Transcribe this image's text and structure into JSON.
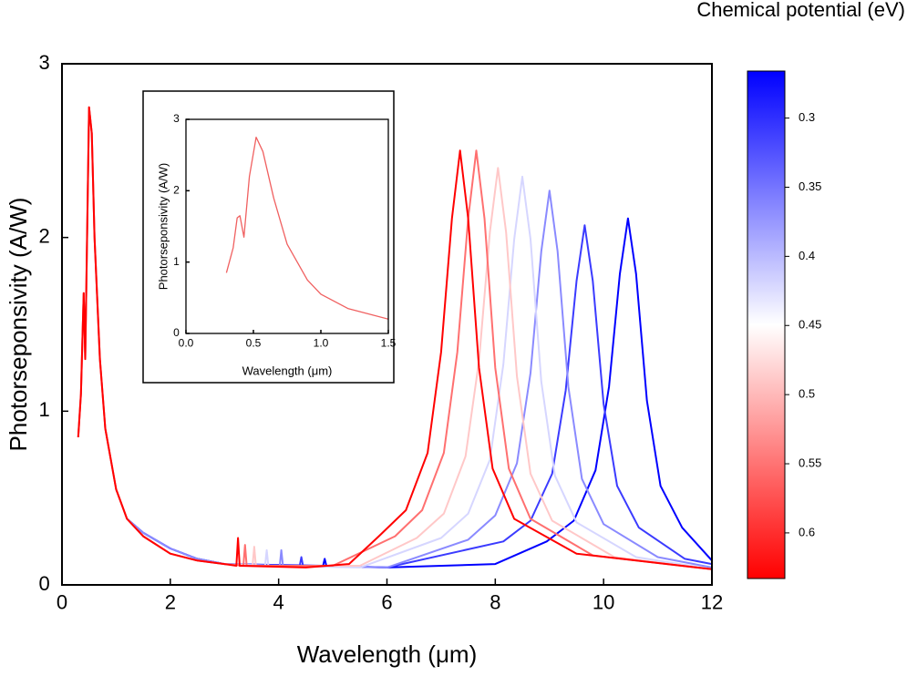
{
  "chart_data": [
    {
      "type": "line",
      "xlabel": "Wavelength (μm)",
      "ylabel": "Photorseponsivity (A/W)",
      "xlim": [
        0,
        12
      ],
      "xticks": [
        0,
        2,
        4,
        6,
        8,
        10,
        12
      ],
      "ylim": [
        0,
        3
      ],
      "yticks": [
        0,
        1,
        2,
        3
      ],
      "series": [
        {
          "color": "#0000ff",
          "x": [
            1.2,
            1.5,
            2.0,
            2.5,
            3.0,
            4.82,
            4.85,
            4.88,
            6.0,
            8.0,
            8.95,
            9.45,
            9.85,
            10.1,
            10.3,
            10.45,
            10.6,
            10.8,
            11.05,
            11.45,
            12.0
          ],
          "values": [
            0.38,
            0.3,
            0.21,
            0.15,
            0.12,
            0.11,
            0.15,
            0.11,
            0.1,
            0.12,
            0.25,
            0.37,
            0.66,
            1.14,
            1.79,
            2.11,
            1.79,
            1.06,
            0.57,
            0.33,
            0.14
          ]
        },
        {
          "color": "#3b3bff",
          "x": [
            1.2,
            1.5,
            2.0,
            2.5,
            3.0,
            4.39,
            4.42,
            4.45,
            6.0,
            8.15,
            8.65,
            9.05,
            9.3,
            9.5,
            9.65,
            9.8,
            10.0,
            10.25,
            10.65,
            11.5,
            12.0
          ],
          "values": [
            0.38,
            0.3,
            0.21,
            0.15,
            0.12,
            0.11,
            0.16,
            0.11,
            0.1,
            0.25,
            0.37,
            0.64,
            1.12,
            1.75,
            2.07,
            1.75,
            1.04,
            0.57,
            0.33,
            0.15,
            0.12
          ]
        },
        {
          "color": "#8a8aff",
          "x": [
            1.2,
            1.5,
            2.0,
            2.5,
            3.0,
            4.02,
            4.05,
            4.08,
            6.0,
            7.5,
            8.0,
            8.4,
            8.65,
            8.85,
            9.0,
            9.15,
            9.35,
            9.6,
            10.0,
            11.0,
            12.0
          ],
          "values": [
            0.38,
            0.3,
            0.21,
            0.15,
            0.12,
            0.11,
            0.2,
            0.11,
            0.1,
            0.26,
            0.4,
            0.7,
            1.22,
            1.92,
            2.27,
            1.92,
            1.14,
            0.61,
            0.35,
            0.16,
            0.1
          ]
        },
        {
          "color": "#d6d6ff",
          "x": [
            0.3,
            0.35,
            0.4,
            0.43,
            0.5,
            0.55,
            0.6,
            0.7,
            0.8,
            1.0,
            1.2,
            1.5,
            2.0,
            2.5,
            3.0,
            3.75,
            3.78,
            3.81,
            5.5,
            7.0,
            7.5,
            7.9,
            8.15,
            8.35,
            8.5,
            8.65,
            8.85,
            9.1,
            9.5,
            10.6,
            12.0
          ],
          "values": [
            0.85,
            1.1,
            1.68,
            1.3,
            2.75,
            2.6,
            2.0,
            1.3,
            0.9,
            0.55,
            0.38,
            0.28,
            0.18,
            0.14,
            0.12,
            0.11,
            0.2,
            0.11,
            0.1,
            0.27,
            0.41,
            0.72,
            1.27,
            1.99,
            2.35,
            1.99,
            1.17,
            0.63,
            0.36,
            0.16,
            0.09
          ]
        },
        {
          "color": "#ffc8c8",
          "x": [
            0.3,
            0.35,
            0.4,
            0.43,
            0.5,
            0.55,
            0.6,
            0.7,
            0.8,
            1.0,
            1.2,
            1.5,
            2.0,
            2.5,
            3.0,
            3.52,
            3.55,
            3.58,
            5.5,
            6.55,
            7.05,
            7.45,
            7.7,
            7.9,
            8.05,
            8.2,
            8.4,
            8.65,
            9.05,
            10.2,
            12.0
          ],
          "values": [
            0.85,
            1.1,
            1.68,
            1.3,
            2.75,
            2.6,
            2.0,
            1.3,
            0.9,
            0.55,
            0.38,
            0.28,
            0.18,
            0.14,
            0.12,
            0.11,
            0.22,
            0.11,
            0.11,
            0.27,
            0.41,
            0.74,
            1.29,
            2.03,
            2.4,
            2.03,
            1.2,
            0.64,
            0.37,
            0.16,
            0.09
          ]
        },
        {
          "color": "#ff7070",
          "x": [
            0.3,
            0.35,
            0.4,
            0.43,
            0.5,
            0.55,
            0.6,
            0.7,
            0.8,
            1.0,
            1.2,
            1.5,
            2.0,
            2.5,
            3.0,
            3.35,
            3.38,
            3.41,
            5.0,
            6.15,
            6.65,
            7.05,
            7.3,
            7.5,
            7.65,
            7.8,
            8.0,
            8.25,
            8.65,
            9.8,
            12.0
          ],
          "values": [
            0.85,
            1.1,
            1.68,
            1.3,
            2.75,
            2.6,
            2.0,
            1.3,
            0.9,
            0.55,
            0.38,
            0.28,
            0.18,
            0.14,
            0.12,
            0.11,
            0.23,
            0.11,
            0.11,
            0.28,
            0.43,
            0.76,
            1.34,
            2.11,
            2.5,
            2.11,
            1.25,
            0.67,
            0.38,
            0.17,
            0.09
          ]
        },
        {
          "color": "#ff0000",
          "x": [
            0.3,
            0.35,
            0.4,
            0.43,
            0.5,
            0.55,
            0.6,
            0.7,
            0.8,
            1.0,
            1.2,
            1.5,
            2.0,
            2.5,
            3.0,
            3.22,
            3.25,
            3.28,
            4.5,
            5.3,
            5.85,
            6.35,
            6.75,
            7.0,
            7.2,
            7.35,
            7.5,
            7.7,
            7.95,
            8.35,
            9.5,
            12.0
          ],
          "values": [
            0.85,
            1.1,
            1.68,
            1.3,
            2.75,
            2.6,
            2.0,
            1.3,
            0.9,
            0.55,
            0.38,
            0.28,
            0.18,
            0.14,
            0.12,
            0.11,
            0.27,
            0.11,
            0.1,
            0.12,
            0.28,
            0.43,
            0.76,
            1.34,
            2.11,
            2.5,
            2.11,
            1.25,
            0.67,
            0.38,
            0.18,
            0.09
          ]
        }
      ],
      "colorbar": {
        "label": "Chemical potential (eV)",
        "lim": [
          0.266,
          0.633
        ],
        "ticks": [
          0.3,
          0.35,
          0.4,
          0.45,
          0.5,
          0.55,
          0.6
        ],
        "colors": [
          "#0000ff",
          "#ffffff",
          "#ff0000"
        ]
      }
    },
    {
      "type": "line",
      "xlabel": "Wavelength (μm)",
      "ylabel": "Photorseponsivity (A/W)",
      "xlim": [
        0,
        1.5
      ],
      "xticks": [
        {
          "value": 0,
          "label": "0.0"
        },
        {
          "value": 0.5,
          "label": "0.5"
        },
        {
          "value": 1,
          "label": "1.0"
        },
        {
          "value": 1.5,
          "label": "1.5"
        }
      ],
      "ylim": [
        0,
        3
      ],
      "yticks": [
        0,
        1,
        2,
        3
      ],
      "series": [
        {
          "color": "#f06060",
          "x": [
            0.3,
            0.35,
            0.38,
            0.4,
            0.43,
            0.47,
            0.52,
            0.57,
            0.65,
            0.75,
            0.9,
            1.0,
            1.2,
            1.5
          ],
          "values": [
            0.85,
            1.2,
            1.62,
            1.65,
            1.35,
            2.2,
            2.75,
            2.55,
            1.9,
            1.25,
            0.75,
            0.55,
            0.35,
            0.2
          ]
        }
      ]
    }
  ]
}
